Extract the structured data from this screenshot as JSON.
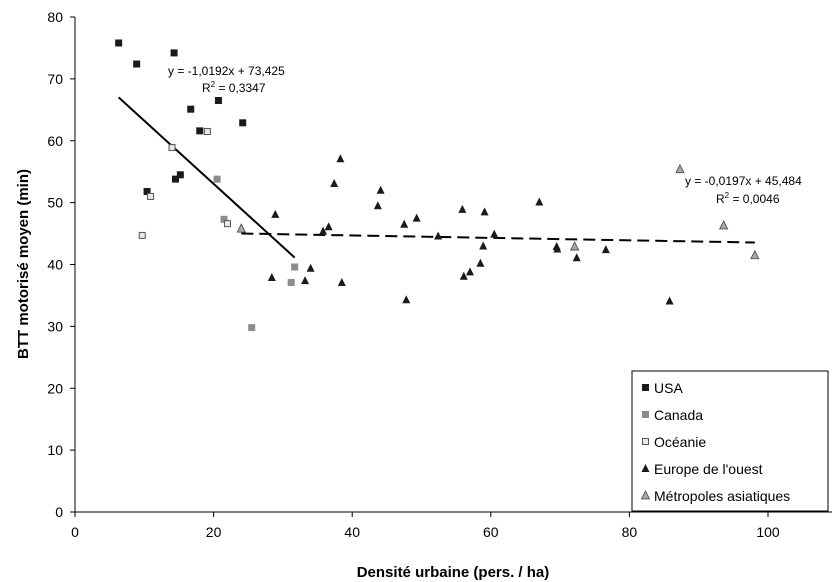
{
  "chart_data": {
    "type": "scatter",
    "xlabel": "Densité urbaine (pers. / ha)",
    "ylabel": "BTT motorisé moyen (min)",
    "xlim": [
      0,
      100
    ],
    "ylim": [
      0,
      80
    ],
    "xticks": [
      0,
      20,
      40,
      60,
      80,
      100
    ],
    "yticks": [
      0,
      10,
      20,
      30,
      40,
      50,
      60,
      70,
      80
    ],
    "grid": false,
    "legend_position": "bottom-right",
    "series": [
      {
        "name": "USA",
        "marker": "square",
        "color": "#1a1a1a",
        "points": [
          [
            6.3,
            75.8
          ],
          [
            8.9,
            72.4
          ],
          [
            10.4,
            51.8
          ],
          [
            14.3,
            74.2
          ],
          [
            14.5,
            53.8
          ],
          [
            15.2,
            54.5
          ],
          [
            16.7,
            65.1
          ],
          [
            18.0,
            61.6
          ],
          [
            20.7,
            66.5
          ],
          [
            24.2,
            62.9
          ]
        ]
      },
      {
        "name": "Canada",
        "marker": "square",
        "color": "#8c8c8c",
        "points": [
          [
            20.5,
            53.8
          ],
          [
            21.5,
            47.3
          ],
          [
            25.5,
            29.8
          ],
          [
            31.2,
            37.1
          ],
          [
            31.7,
            39.6
          ]
        ]
      },
      {
        "name": "Océanie",
        "marker": "square-hollow",
        "color": "#c8c8c8",
        "points": [
          [
            9.7,
            44.7
          ],
          [
            10.9,
            51.0
          ],
          [
            14.0,
            58.9
          ],
          [
            19.1,
            61.5
          ],
          [
            22.0,
            46.6
          ]
        ]
      },
      {
        "name": "Europe de l'ouest",
        "marker": "triangle",
        "color": "#1a1a1a",
        "points": [
          [
            28.4,
            37.9
          ],
          [
            28.9,
            48.1
          ],
          [
            33.2,
            37.4
          ],
          [
            34.0,
            39.4
          ],
          [
            35.8,
            45.4
          ],
          [
            36.6,
            46.1
          ],
          [
            37.4,
            53.1
          ],
          [
            38.3,
            57.1
          ],
          [
            38.5,
            37.1
          ],
          [
            43.7,
            49.5
          ],
          [
            44.1,
            52.0
          ],
          [
            47.5,
            46.5
          ],
          [
            47.8,
            34.3
          ],
          [
            49.3,
            47.5
          ],
          [
            52.4,
            44.6
          ],
          [
            55.9,
            48.9
          ],
          [
            56.1,
            38.1
          ],
          [
            57.0,
            38.8
          ],
          [
            58.5,
            40.2
          ],
          [
            58.9,
            43.0
          ],
          [
            59.1,
            48.5
          ],
          [
            60.5,
            44.9
          ],
          [
            67.0,
            50.1
          ],
          [
            69.5,
            42.9
          ],
          [
            69.6,
            42.5
          ],
          [
            72.4,
            41.1
          ],
          [
            76.6,
            42.4
          ],
          [
            85.8,
            34.1
          ]
        ]
      },
      {
        "name": "Métropoles asiatiques",
        "marker": "triangle-light",
        "color": "#a8a8a8",
        "points": [
          [
            24.0,
            45.8
          ],
          [
            72.1,
            42.9
          ],
          [
            87.3,
            55.4
          ],
          [
            93.6,
            46.3
          ],
          [
            98.1,
            41.5
          ]
        ]
      }
    ],
    "trendlines": [
      {
        "x_range": [
          6.3,
          31.7
        ],
        "slope": -1.0192,
        "intercept": 73.425,
        "style": "solid",
        "equation": "y = -1,0192x + 73,425",
        "r2_label": "R",
        "r2_value": " = 0,3347"
      },
      {
        "x_range": [
          24.0,
          98.1
        ],
        "slope": -0.0197,
        "intercept": 45.484,
        "style": "dashed",
        "equation": "y = -0,0197x + 45,484",
        "r2_label": "R",
        "r2_value": " = 0,0046"
      }
    ]
  }
}
